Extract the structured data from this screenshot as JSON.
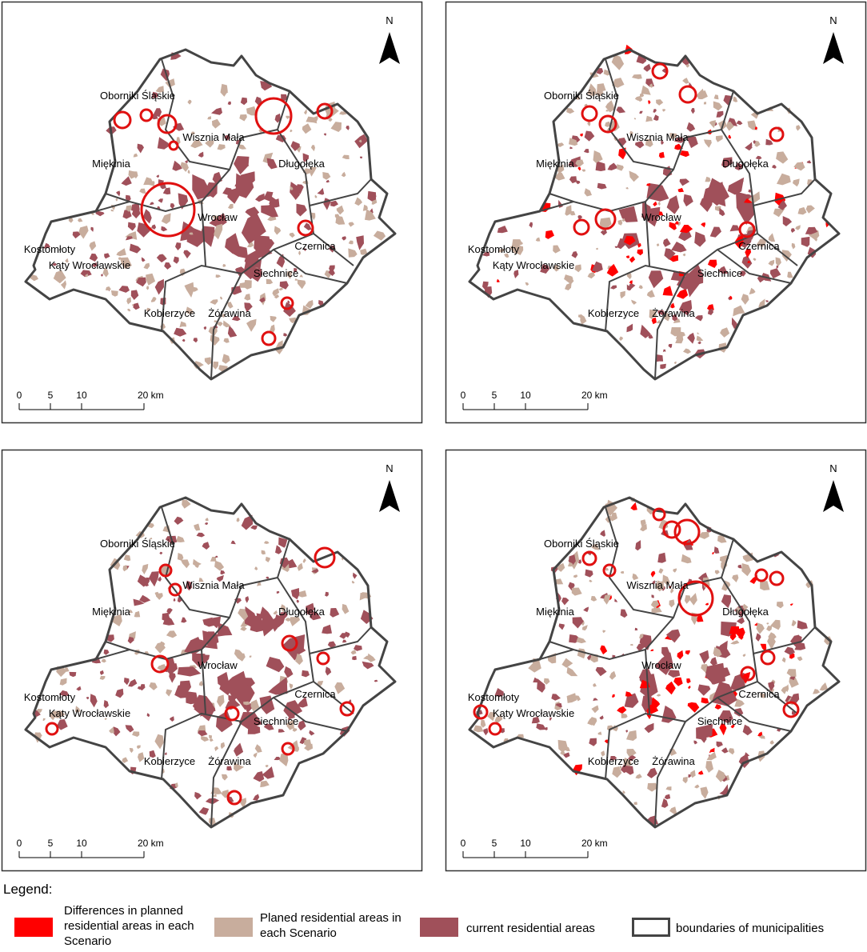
{
  "map": {
    "north_label": "N",
    "scale_labels": [
      "0",
      "5",
      "10",
      "20 km"
    ],
    "municipalities": [
      "Oborniki Śląskie",
      "Wisznia Mała",
      "Długołęka",
      "Miękinia",
      "Wrocław",
      "Kostomłoty",
      "Kąty Wrocławskie",
      "Czernica",
      "Siechnice",
      "Kobierzyce",
      "Żórawina"
    ]
  },
  "legend": {
    "title": "Legend:",
    "items": [
      {
        "label": "Differences in planned residential areas in each Scenario"
      },
      {
        "label": "Planed residential areas in each Scenario"
      },
      {
        "label": "current residential areas"
      },
      {
        "label": "boundaries of municipalities"
      }
    ]
  }
}
